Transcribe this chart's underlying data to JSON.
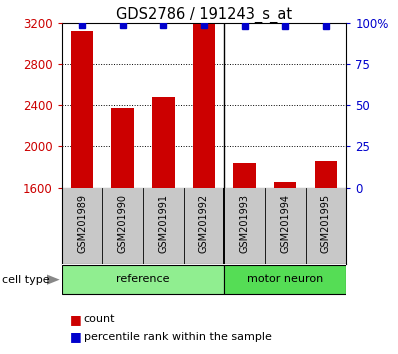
{
  "title": "GDS2786 / 191243_s_at",
  "samples": [
    "GSM201989",
    "GSM201990",
    "GSM201991",
    "GSM201992",
    "GSM201993",
    "GSM201994",
    "GSM201995"
  ],
  "counts": [
    3120,
    2370,
    2480,
    3190,
    1840,
    1650,
    1860
  ],
  "percentiles": [
    99,
    99,
    99,
    99,
    98,
    98,
    98
  ],
  "groups": [
    {
      "label": "reference",
      "start": 0,
      "end": 4,
      "color": "#90EE90"
    },
    {
      "label": "motor neuron",
      "start": 4,
      "end": 7,
      "color": "#55DD55"
    }
  ],
  "ylim_left": [
    1600,
    3200
  ],
  "ylim_right": [
    0,
    100
  ],
  "yticks_left": [
    1600,
    2000,
    2400,
    2800,
    3200
  ],
  "yticks_right": [
    0,
    25,
    50,
    75,
    100
  ],
  "bar_color": "#CC0000",
  "dot_color": "#0000CC",
  "left_tick_color": "#CC0000",
  "right_tick_color": "#0000CC",
  "label_bg_color": "#C8C8C8",
  "sep_color": "#333333",
  "legend_count_color": "#CC0000",
  "legend_pct_color": "#0000CC",
  "figsize": [
    3.98,
    3.54
  ],
  "dpi": 100
}
